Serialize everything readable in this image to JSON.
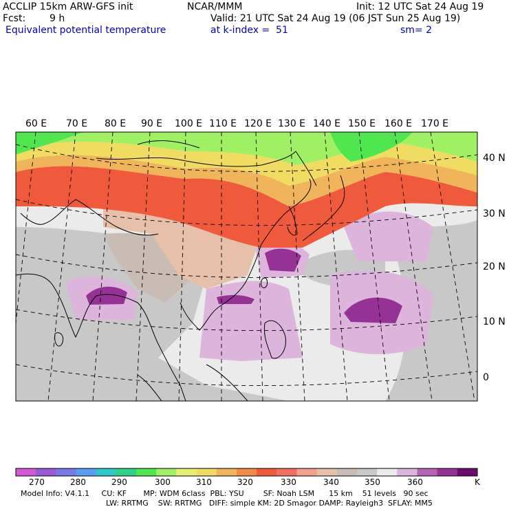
{
  "header": {
    "model": "ACCLIP 15km ARW-GFS init",
    "org": "NCAR/MMM",
    "init": "Init: 12 UTC Sat 24 Aug 19",
    "fcst_label": "Fcst:",
    "fcst_value": "9 h",
    "valid": "Valid: 21 UTC Sat 24 Aug 19 (06 JST Sun 25 Aug 19)",
    "field": "Equivalent potential temperature",
    "level": "at k-index =  51",
    "smooth": "sm= 2"
  },
  "map": {
    "longitude_labels": [
      "60 E",
      "70 E",
      "80 E",
      "90 E",
      "100 E",
      "110 E",
      "120 E",
      "130 E",
      "140 E",
      "150 E",
      "160 E",
      "170 E"
    ],
    "latitude_labels": [
      "40 N",
      "30 N",
      "20 N",
      "10 N",
      "0"
    ]
  },
  "colorbar": {
    "colors": [
      "#d458d4",
      "#9a5ad4",
      "#7878e6",
      "#5a9cf0",
      "#2ec8c8",
      "#30d088",
      "#50e650",
      "#a0f064",
      "#e6f070",
      "#f0dc60",
      "#f0b45a",
      "#f08c46",
      "#f05a3c",
      "#f07060",
      "#f0a08c",
      "#e6c0aa",
      "#c8bcb4",
      "#c8c8c8",
      "#ebebeb",
      "#dcb4dc",
      "#b464b4",
      "#963296",
      "#6e0a6e"
    ],
    "ticks": [
      "270",
      "280",
      "290",
      "300",
      "310",
      "320",
      "330",
      "340",
      "350",
      "360"
    ],
    "unit": "K"
  },
  "footer": {
    "line1": "Model Info: V4.1.1     CU: KF       MP: WDM 6class  PBL: YSU        SF: Noah LSM      15 km    51 levels   90 sec",
    "line2": "LW: RRTMG    SW: RRTMG   DIFF: simple KM: 2D Smagor DAMP: Rayleigh3  SFLAY: MM5"
  }
}
